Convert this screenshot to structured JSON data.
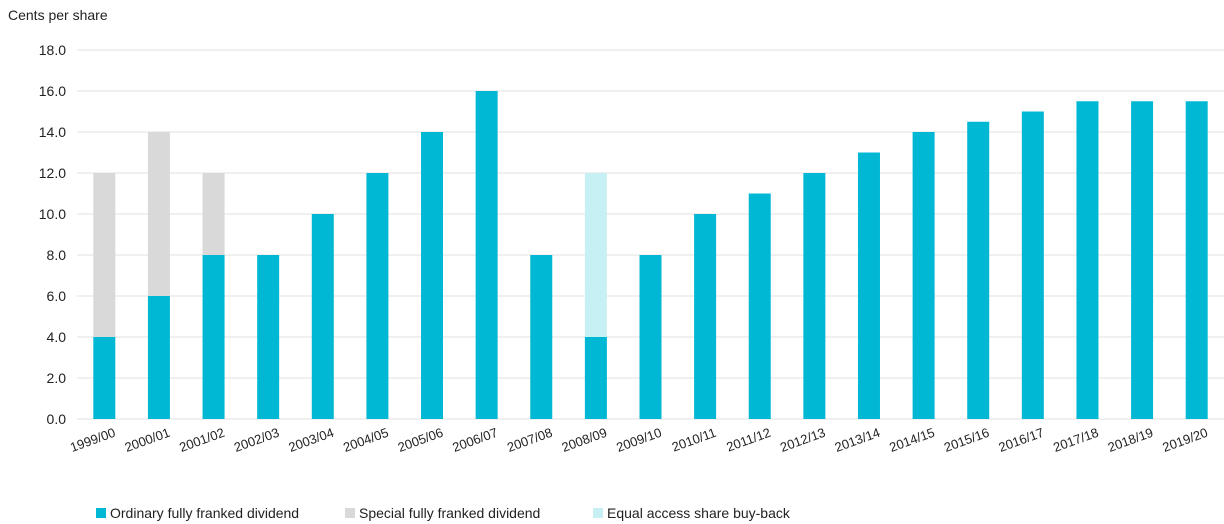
{
  "chart_data": {
    "type": "bar",
    "stacked": true,
    "ylabel": "Cents per share",
    "ylim": [
      0,
      18
    ],
    "yticks": [
      "0.0",
      "2.0",
      "4.0",
      "6.0",
      "8.0",
      "10.0",
      "12.0",
      "14.0",
      "16.0",
      "18.0"
    ],
    "grid": true,
    "legend_position": "bottom-left",
    "categories": [
      "1999/00",
      "2000/01",
      "2001/02",
      "2002/03",
      "2003/04",
      "2004/05",
      "2005/06",
      "2006/07",
      "2007/08",
      "2008/09",
      "2009/10",
      "2010/11",
      "2011/12",
      "2012/13",
      "2013/14",
      "2014/15",
      "2015/16",
      "2016/17",
      "2017/18",
      "2018/19",
      "2019/20"
    ],
    "series": [
      {
        "name": "Ordinary fully franked dividend",
        "color": "#00b8d4",
        "values": [
          4,
          6,
          8,
          8,
          10,
          12,
          14,
          16,
          8,
          4,
          8,
          10,
          11,
          12,
          13,
          14,
          14.5,
          15,
          15.5,
          15.5,
          15.5
        ]
      },
      {
        "name": "Special fully franked dividend",
        "color": "#d9d9d9",
        "values": [
          8,
          8,
          4,
          0,
          0,
          0,
          0,
          0,
          0,
          0,
          0,
          0,
          0,
          0,
          0,
          0,
          0,
          0,
          0,
          0,
          0
        ]
      },
      {
        "name": "Equal access share buy-back",
        "color": "#c7f0f5",
        "values": [
          0,
          0,
          0,
          0,
          0,
          0,
          0,
          0,
          0,
          8,
          0,
          0,
          0,
          0,
          0,
          0,
          0,
          0,
          0,
          0,
          0
        ]
      }
    ]
  }
}
